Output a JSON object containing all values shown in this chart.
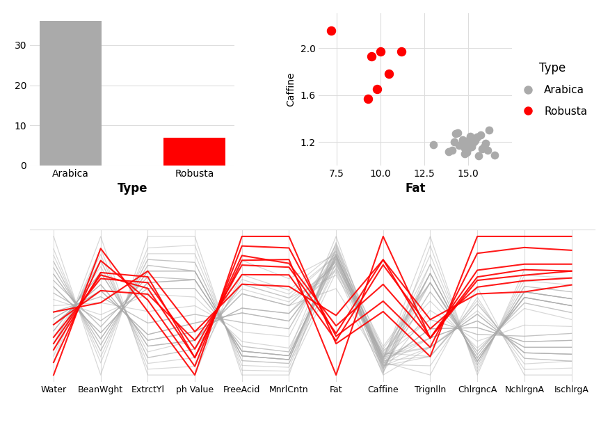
{
  "bar_categories": [
    "Arabica",
    "Robusta"
  ],
  "bar_values": [
    36,
    7
  ],
  "bar_colors": [
    "#aaaaaa",
    "#ff0000"
  ],
  "bar_xlabel": "Type",
  "bar_yticks": [
    0,
    10,
    20,
    30
  ],
  "arabica_fat": [
    14.2,
    15.0,
    15.3,
    14.8,
    15.1,
    13.9,
    15.6,
    16.2,
    14.5,
    15.4,
    15.0,
    14.7,
    15.2,
    15.8,
    14.3,
    16.5,
    15.9,
    14.1,
    15.5,
    15.3,
    14.6,
    15.7,
    14.9,
    15.1,
    16.0,
    14.4,
    15.2,
    15.0,
    14.8,
    13.0,
    15.3,
    16.1,
    14.7,
    15.5,
    15.2,
    15.0
  ],
  "arabica_caffeine": [
    1.2,
    1.18,
    1.22,
    1.1,
    1.25,
    1.12,
    1.08,
    1.3,
    1.17,
    1.21,
    1.15,
    1.19,
    1.23,
    1.14,
    1.27,
    1.09,
    1.16,
    1.13,
    1.24,
    1.2,
    1.18,
    1.26,
    1.11,
    1.22,
    1.19,
    1.28,
    1.16,
    1.21,
    1.15,
    1.18,
    1.2,
    1.13,
    1.22,
    1.24,
    1.17,
    1.15
  ],
  "robusta_fat": [
    7.2,
    9.5,
    9.8,
    10.0,
    9.3,
    11.2,
    10.5
  ],
  "robusta_caffeine": [
    2.15,
    1.93,
    1.65,
    1.97,
    1.57,
    1.97,
    1.78
  ],
  "scatter_xlabel": "Fat",
  "scatter_ylabel": "Caffine",
  "scatter_xticks": [
    7.5,
    10.0,
    12.5,
    15.0
  ],
  "scatter_yticks": [
    1.2,
    1.6,
    2.0
  ],
  "scatter_xlim": [
    6.5,
    17.5
  ],
  "scatter_ylim": [
    1.0,
    2.3
  ],
  "legend_title": "Type",
  "legend_labels": [
    "Arabica",
    "Robusta"
  ],
  "legend_colors": [
    "#aaaaaa",
    "#ff0000"
  ],
  "columns": [
    "Water",
    "BeanWght",
    "ExtrctYl",
    "ph Value",
    "FreeAcid",
    "MnrlCntn",
    "Fat",
    "Caffine",
    "Trignlln",
    "ChlrgncA",
    "NchlrgnA",
    "IschlrgA"
  ],
  "arabica_parallel": [
    [
      62.0,
      17.5,
      22.0,
      5.5,
      1.5,
      1.6,
      15.0,
      1.15,
      1.2,
      2.8,
      2.0,
      1.3
    ],
    [
      58.0,
      22.0,
      16.0,
      4.8,
      2.5,
      2.8,
      14.2,
      1.2,
      0.5,
      4.0,
      1.0,
      0.6
    ],
    [
      61.0,
      18.0,
      21.0,
      5.4,
      1.6,
      1.7,
      15.3,
      1.18,
      1.1,
      2.9,
      1.9,
      1.2
    ],
    [
      57.5,
      23.0,
      15.5,
      4.7,
      2.8,
      3.0,
      14.8,
      1.22,
      0.4,
      4.2,
      0.9,
      0.5
    ],
    [
      63.0,
      16.5,
      23.0,
      5.6,
      1.4,
      1.5,
      15.1,
      1.1,
      1.3,
      2.7,
      2.1,
      1.4
    ],
    [
      56.5,
      24.0,
      14.5,
      4.6,
      3.0,
      3.2,
      13.9,
      1.25,
      0.3,
      4.5,
      0.8,
      0.4
    ],
    [
      62.5,
      17.0,
      22.5,
      5.5,
      1.5,
      1.6,
      15.6,
      1.12,
      1.2,
      2.8,
      2.0,
      1.3
    ],
    [
      57.0,
      23.5,
      15.0,
      4.7,
      2.9,
      3.1,
      14.5,
      1.08,
      0.4,
      4.3,
      0.9,
      0.5
    ],
    [
      61.5,
      18.5,
      21.5,
      5.4,
      1.6,
      1.7,
      15.4,
      1.3,
      1.1,
      3.0,
      1.9,
      1.2
    ],
    [
      58.5,
      21.5,
      16.5,
      4.9,
      2.4,
      2.6,
      15.0,
      1.17,
      0.6,
      3.8,
      1.1,
      0.7
    ],
    [
      63.5,
      16.0,
      23.5,
      5.7,
      1.3,
      1.4,
      14.7,
      1.21,
      1.4,
      2.6,
      2.2,
      1.5
    ],
    [
      56.0,
      24.5,
      14.0,
      4.5,
      3.1,
      3.3,
      15.2,
      1.15,
      0.3,
      4.6,
      0.7,
      0.4
    ],
    [
      62.0,
      17.5,
      22.0,
      5.5,
      1.5,
      1.6,
      15.8,
      1.19,
      1.2,
      2.8,
      2.0,
      1.3
    ],
    [
      58.0,
      22.0,
      16.0,
      4.8,
      2.5,
      2.8,
      14.3,
      1.23,
      0.5,
      4.0,
      1.0,
      0.6
    ],
    [
      60.5,
      19.0,
      20.5,
      5.3,
      1.7,
      1.8,
      16.5,
      1.14,
      1.0,
      3.1,
      1.8,
      1.1
    ],
    [
      59.0,
      21.0,
      17.5,
      5.0,
      2.2,
      2.4,
      15.9,
      1.27,
      0.7,
      3.6,
      1.2,
      0.8
    ],
    [
      64.0,
      15.5,
      24.0,
      5.8,
      1.2,
      1.3,
      14.1,
      1.09,
      1.5,
      2.5,
      2.3,
      1.6
    ],
    [
      55.5,
      25.0,
      13.5,
      4.4,
      3.2,
      3.4,
      15.5,
      1.16,
      0.2,
      4.7,
      0.6,
      0.3
    ],
    [
      61.0,
      18.0,
      21.0,
      5.4,
      1.6,
      1.7,
      15.3,
      1.13,
      1.1,
      2.9,
      1.9,
      1.2
    ],
    [
      57.5,
      23.0,
      15.5,
      4.7,
      2.8,
      3.0,
      14.6,
      1.24,
      0.4,
      4.2,
      0.9,
      0.5
    ],
    [
      62.5,
      17.0,
      22.5,
      5.5,
      1.5,
      1.6,
      15.7,
      1.2,
      1.2,
      2.8,
      2.0,
      1.3
    ],
    [
      58.5,
      21.5,
      16.5,
      4.9,
      2.4,
      2.6,
      14.9,
      1.18,
      0.6,
      3.8,
      1.1,
      0.7
    ],
    [
      60.0,
      19.5,
      20.0,
      5.2,
      1.8,
      1.9,
      15.1,
      1.26,
      0.9,
      3.2,
      1.7,
      1.0
    ],
    [
      59.5,
      20.5,
      18.5,
      5.1,
      2.0,
      2.2,
      16.0,
      1.11,
      0.8,
      3.4,
      1.4,
      0.9
    ],
    [
      63.0,
      16.5,
      23.0,
      5.6,
      1.4,
      1.5,
      14.4,
      1.22,
      1.3,
      2.7,
      2.1,
      1.4
    ],
    [
      56.5,
      24.0,
      14.5,
      4.6,
      3.0,
      3.2,
      15.2,
      1.19,
      0.3,
      4.5,
      0.8,
      0.4
    ],
    [
      61.5,
      18.5,
      21.5,
      5.4,
      1.6,
      1.7,
      15.0,
      1.28,
      1.1,
      3.0,
      1.9,
      1.2
    ],
    [
      58.0,
      22.0,
      16.0,
      4.8,
      2.5,
      2.8,
      14.8,
      1.16,
      0.5,
      4.0,
      1.0,
      0.6
    ],
    [
      62.0,
      17.5,
      22.0,
      5.5,
      1.5,
      1.6,
      15.2,
      1.21,
      1.2,
      2.8,
      2.0,
      1.3
    ],
    [
      57.5,
      23.0,
      15.5,
      4.7,
      2.8,
      3.0,
      13.0,
      1.15,
      0.4,
      4.2,
      0.9,
      0.5
    ],
    [
      55.0,
      26.0,
      13.0,
      4.3,
      3.5,
      3.7,
      15.3,
      1.18,
      0.1,
      5.0,
      0.5,
      0.2
    ],
    [
      65.0,
      14.5,
      25.0,
      5.9,
      1.1,
      1.2,
      16.1,
      1.2,
      1.6,
      2.4,
      2.4,
      1.7
    ],
    [
      60.5,
      19.0,
      20.5,
      5.3,
      1.7,
      1.8,
      14.7,
      1.13,
      1.0,
      3.1,
      1.8,
      1.1
    ],
    [
      59.0,
      21.0,
      17.5,
      5.0,
      2.2,
      2.4,
      15.5,
      1.22,
      0.7,
      3.6,
      1.2,
      0.8
    ],
    [
      61.0,
      18.0,
      21.0,
      5.4,
      1.6,
      1.7,
      15.2,
      1.24,
      1.1,
      2.9,
      1.9,
      1.2
    ],
    [
      58.5,
      21.5,
      16.5,
      4.9,
      2.4,
      2.6,
      15.2,
      1.17,
      0.6,
      3.8,
      1.1,
      0.7
    ]
  ],
  "robusta_parallel": [
    [
      56.0,
      23.0,
      21.5,
      4.5,
      3.5,
      4.2,
      7.2,
      2.15,
      0.5,
      5.5,
      2.5,
      1.8
    ],
    [
      58.0,
      21.5,
      20.0,
      4.7,
      3.2,
      3.8,
      9.5,
      1.93,
      0.6,
      5.0,
      2.2,
      1.6
    ],
    [
      55.0,
      24.0,
      19.5,
      4.4,
      3.8,
      4.5,
      9.8,
      1.65,
      0.4,
      6.0,
      2.8,
      2.0
    ],
    [
      57.0,
      22.5,
      21.0,
      4.6,
      3.4,
      4.0,
      10.0,
      1.97,
      0.5,
      5.3,
      2.4,
      1.7
    ],
    [
      54.0,
      25.0,
      18.5,
      4.3,
      4.0,
      4.8,
      9.3,
      1.57,
      0.3,
      6.5,
      3.0,
      2.2
    ],
    [
      59.0,
      20.5,
      22.0,
      4.8,
      3.0,
      3.5,
      11.2,
      1.97,
      0.7,
      4.8,
      2.0,
      1.5
    ],
    [
      56.5,
      22.8,
      20.5,
      4.5,
      3.6,
      4.1,
      10.5,
      1.78,
      0.5,
      5.2,
      2.3,
      1.7
    ]
  ],
  "bg_color": "#ffffff",
  "grid_color": "#dddddd",
  "arabica_color": "#aaaaaa",
  "robusta_color": "#ff0000"
}
